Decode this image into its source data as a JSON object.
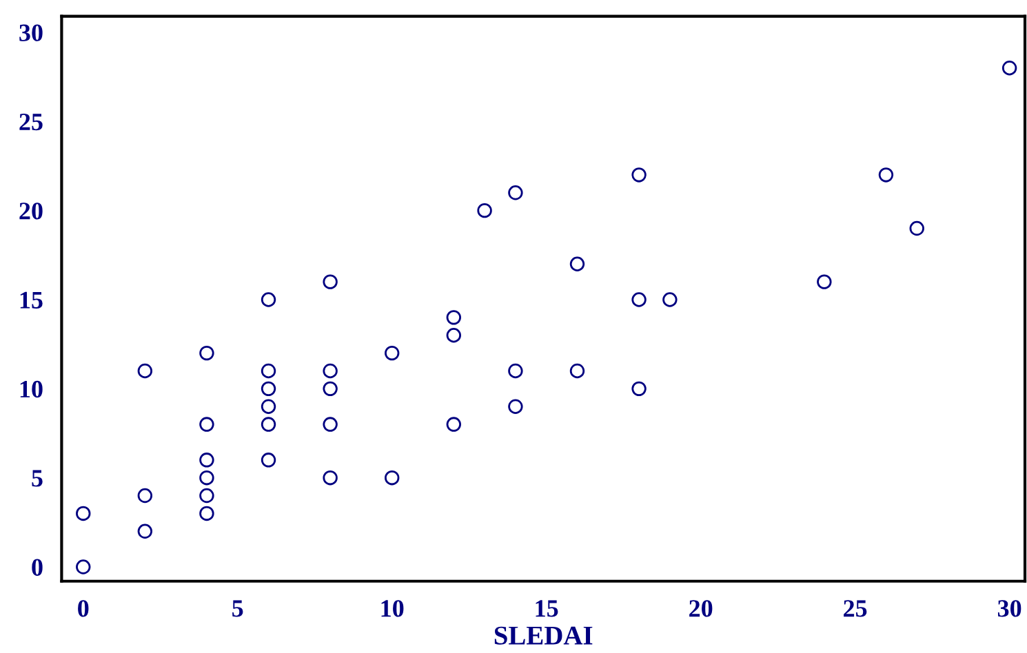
{
  "chart_data": {
    "type": "scatter",
    "xlabel": "SLEDAI",
    "xlim": [
      -0.7,
      30.5
    ],
    "ylim": [
      -0.8,
      30.9
    ],
    "xticks": [
      0,
      5,
      10,
      15,
      20,
      25,
      30
    ],
    "yticks": [
      0,
      5,
      10,
      15,
      20,
      25,
      30
    ],
    "grid": false,
    "marker": "circle",
    "series": [
      {
        "color": "#000080",
        "x": [
          0,
          0,
          2,
          2,
          2,
          4,
          4,
          4,
          4,
          4,
          4,
          6,
          6,
          6,
          6,
          6,
          6,
          8,
          8,
          8,
          8,
          8,
          10,
          10,
          12,
          12,
          12,
          13,
          14,
          14,
          14,
          16,
          16,
          18,
          18,
          18,
          19,
          24,
          26,
          27,
          30
        ],
        "values": [
          0,
          3,
          2,
          4,
          11,
          3,
          4,
          5,
          6,
          8,
          12,
          6,
          8,
          9,
          10,
          11,
          15,
          5,
          8,
          10,
          11,
          16,
          5,
          12,
          8,
          13,
          14,
          20,
          9,
          11,
          21,
          11,
          17,
          10,
          15,
          22,
          15,
          16,
          22,
          19,
          28
        ]
      }
    ]
  }
}
